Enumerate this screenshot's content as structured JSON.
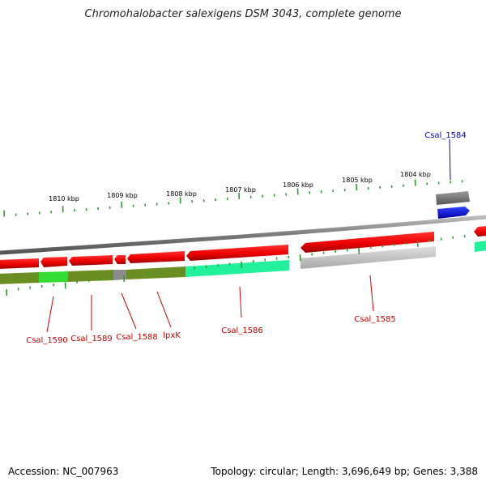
{
  "title": "Chromohalobacter salexigens DSM 3043, complete genome",
  "footer": {
    "accession": "Accession: NC_007963",
    "summary": "Topology: circular; Length: 3,696,649 bp; Genes: 3,388"
  },
  "scale_labels": [
    "1810 kbp",
    "1809 kbp",
    "1808 kbp",
    "1807 kbp",
    "1806 kbp",
    "1805 kbp",
    "1804 kbp"
  ],
  "genes": [
    {
      "name": "Csal_1590",
      "color": "#cc0000"
    },
    {
      "name": "Csal_1589",
      "color": "#cc0000"
    },
    {
      "name": "Csal_1588",
      "color": "#cc0000"
    },
    {
      "name": "lpxK",
      "color": "#cc0000"
    },
    {
      "name": "Csal_1586",
      "color": "#cc0000"
    },
    {
      "name": "Csal_1585",
      "color": "#cc0000"
    },
    {
      "name": "Csal_1584",
      "color": "#0000cc"
    }
  ],
  "colors": {
    "backbone": "#8a8a8a",
    "cds_reverse": "#ee1111",
    "cds_forward": "#0011ee",
    "cog_olive": "#6b8e23",
    "cog_green": "#33dd33",
    "cog_teal": "#22f09a",
    "cog_gray": "#8c8c8c",
    "tick": "#339933"
  }
}
